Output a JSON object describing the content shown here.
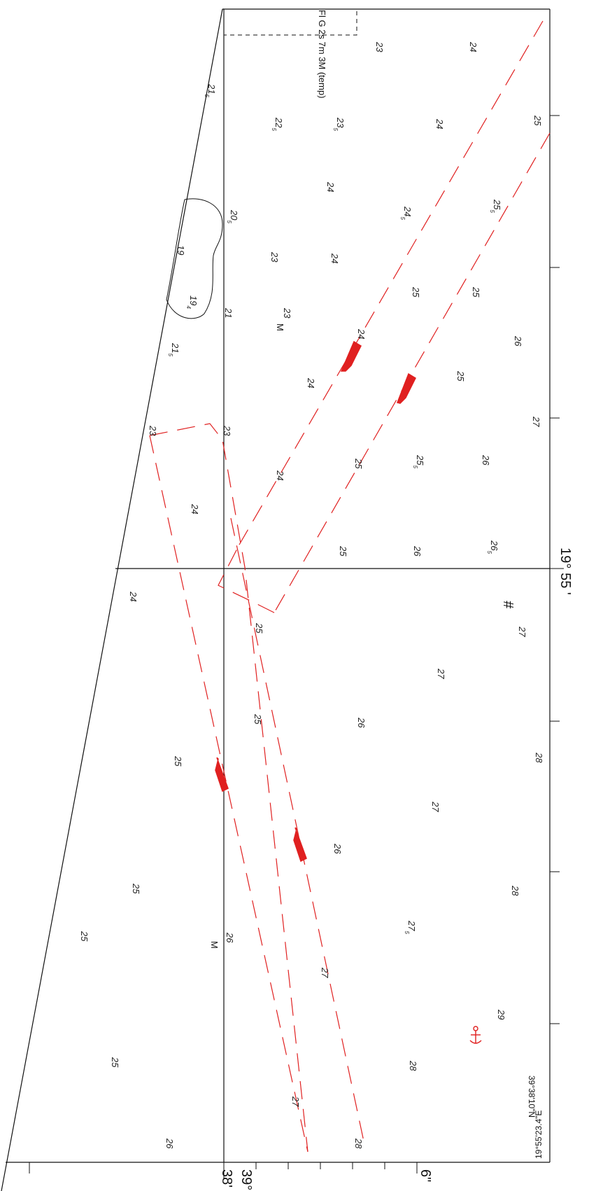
{
  "colors": {
    "line": "#111111",
    "red": "#e02020"
  },
  "light": {
    "label": "Fl G 2s 7m 3M (temp)"
  },
  "labels": {
    "lon_deg": "19°",
    "lon_min": "55 '",
    "lat_38": "38'",
    "lat_39": "39°",
    "sec_6": "6\"",
    "corner_lat": "39°38'10\"N",
    "corner_lon": "19°55'23.4\"E"
  },
  "symbols": {
    "hash": "#",
    "anchor": "⚓",
    "m": "M"
  },
  "soundings": [
    {
      "v": "23",
      "s": ""
    },
    {
      "v": "24",
      "s": ""
    },
    {
      "v": "21",
      "s": "5"
    },
    {
      "v": "22",
      "s": "5"
    },
    {
      "v": "23",
      "s": "5"
    },
    {
      "v": "24",
      "s": ""
    },
    {
      "v": "25",
      "s": ""
    },
    {
      "v": "20",
      "s": "5"
    },
    {
      "v": "24",
      "s": ""
    },
    {
      "v": "24",
      "s": "5"
    },
    {
      "v": "25",
      "s": "5"
    },
    {
      "v": "19",
      "s": ""
    },
    {
      "v": "23",
      "s": ""
    },
    {
      "v": "24",
      "s": ""
    },
    {
      "v": "19",
      "s": "4"
    },
    {
      "v": "21",
      "s": ""
    },
    {
      "v": "23",
      "s": ""
    },
    {
      "v": "25",
      "s": ""
    },
    {
      "v": "25",
      "s": ""
    },
    {
      "v": "24",
      "s": ""
    },
    {
      "v": "26",
      "s": ""
    },
    {
      "v": "21",
      "s": "5"
    },
    {
      "v": "24",
      "s": ""
    },
    {
      "v": "25",
      "s": ""
    },
    {
      "v": "23",
      "s": ""
    },
    {
      "v": "23",
      "s": ""
    },
    {
      "v": "27",
      "s": ""
    },
    {
      "v": "25",
      "s": ""
    },
    {
      "v": "25",
      "s": "5"
    },
    {
      "v": "26",
      "s": ""
    },
    {
      "v": "24",
      "s": ""
    },
    {
      "v": "24",
      "s": ""
    },
    {
      "v": "25",
      "s": ""
    },
    {
      "v": "26",
      "s": ""
    },
    {
      "v": "26",
      "s": "5"
    },
    {
      "v": "24",
      "s": ""
    },
    {
      "v": "25",
      "s": ""
    },
    {
      "v": "27",
      "s": ""
    },
    {
      "v": "27",
      "s": ""
    },
    {
      "v": "25",
      "s": ""
    },
    {
      "v": "26",
      "s": ""
    },
    {
      "v": "28",
      "s": ""
    },
    {
      "v": "25",
      "s": ""
    },
    {
      "v": "27",
      "s": ""
    },
    {
      "v": "26",
      "s": ""
    },
    {
      "v": "28",
      "s": ""
    },
    {
      "v": "25",
      "s": ""
    },
    {
      "v": "27",
      "s": "5"
    },
    {
      "v": "25",
      "s": ""
    },
    {
      "v": "26",
      "s": ""
    },
    {
      "v": "27",
      "s": ""
    },
    {
      "v": "29",
      "s": ""
    },
    {
      "v": "25",
      "s": ""
    },
    {
      "v": "28",
      "s": ""
    },
    {
      "v": "27",
      "s": ""
    },
    {
      "v": "26",
      "s": ""
    },
    {
      "v": "28",
      "s": ""
    }
  ]
}
